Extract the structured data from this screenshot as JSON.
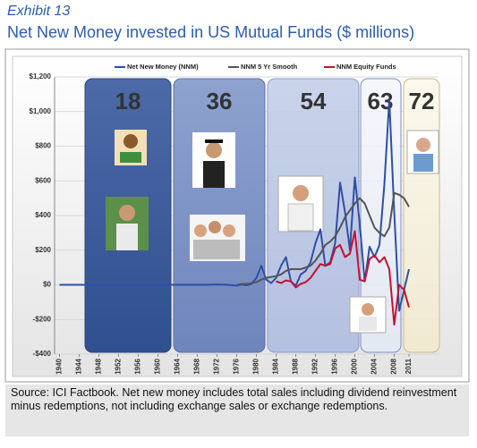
{
  "chart_data": {
    "type": "line",
    "exhibit": "Exhibit 13",
    "title": "Net New Money invested in US Mutual Funds ($ millions)",
    "x": [
      1940,
      1941,
      1942,
      1943,
      1944,
      1945,
      1946,
      1947,
      1948,
      1949,
      1950,
      1951,
      1952,
      1953,
      1954,
      1955,
      1956,
      1957,
      1958,
      1959,
      1960,
      1961,
      1962,
      1963,
      1964,
      1965,
      1966,
      1967,
      1968,
      1969,
      1970,
      1971,
      1972,
      1973,
      1974,
      1975,
      1976,
      1977,
      1978,
      1979,
      1980,
      1981,
      1982,
      1983,
      1984,
      1985,
      1986,
      1987,
      1988,
      1989,
      1990,
      1991,
      1992,
      1993,
      1994,
      1995,
      1996,
      1997,
      1998,
      1999,
      2000,
      2001,
      2002,
      2003,
      2004,
      2005,
      2006,
      2007,
      2008,
      2009,
      2010,
      2011
    ],
    "series": [
      {
        "name": "Net New Money (NNM)",
        "color": "#2e4fa8",
        "values": [
          0,
          0,
          0,
          0,
          0,
          0,
          0,
          0,
          0,
          0,
          0,
          0,
          0,
          0,
          0,
          0,
          0,
          0,
          0,
          0,
          0,
          0,
          0,
          0,
          0,
          0,
          0,
          0,
          0,
          0,
          0,
          1,
          2,
          1,
          0,
          -2,
          -5,
          2,
          -3,
          5,
          40,
          110,
          30,
          10,
          40,
          110,
          160,
          20,
          -5,
          60,
          80,
          130,
          240,
          320,
          110,
          130,
          240,
          590,
          420,
          200,
          620,
          350,
          20,
          220,
          160,
          230,
          580,
          1070,
          420,
          -150,
          -30,
          90
        ]
      },
      {
        "name": "NNM 5 Yr Smooth",
        "color": "#555555",
        "values": [
          null,
          null,
          null,
          null,
          null,
          null,
          null,
          null,
          null,
          null,
          null,
          null,
          null,
          null,
          null,
          null,
          null,
          null,
          null,
          null,
          null,
          null,
          null,
          null,
          null,
          null,
          null,
          null,
          null,
          null,
          null,
          null,
          null,
          null,
          null,
          null,
          0,
          5,
          5,
          10,
          15,
          30,
          40,
          45,
          50,
          60,
          80,
          90,
          90,
          90,
          100,
          110,
          140,
          180,
          230,
          250,
          280,
          330,
          390,
          430,
          470,
          500,
          470,
          400,
          330,
          300,
          280,
          330,
          530,
          520,
          500,
          450
        ]
      },
      {
        "name": "NNM Equity Funds",
        "color": "#c8102e",
        "values": [
          null,
          null,
          null,
          null,
          null,
          null,
          null,
          null,
          null,
          null,
          null,
          null,
          null,
          null,
          null,
          null,
          null,
          null,
          null,
          null,
          null,
          null,
          null,
          null,
          null,
          null,
          null,
          null,
          null,
          null,
          null,
          null,
          null,
          null,
          null,
          null,
          null,
          null,
          null,
          null,
          null,
          null,
          null,
          null,
          20,
          10,
          25,
          20,
          -15,
          5,
          15,
          40,
          80,
          120,
          110,
          120,
          210,
          230,
          160,
          180,
          310,
          30,
          20,
          150,
          170,
          130,
          160,
          90,
          -230,
          0,
          -30,
          -130
        ]
      }
    ],
    "xlim": [
      1939,
      2017
    ],
    "xticks": [
      1940,
      1944,
      1948,
      1952,
      1956,
      1960,
      1964,
      1968,
      1972,
      1976,
      1980,
      1984,
      1988,
      1992,
      1996,
      2000,
      2004,
      2008,
      2011
    ],
    "ylim": [
      -400,
      1200
    ],
    "yticks": [
      {
        "value": -400,
        "label": "-$400"
      },
      {
        "value": -200,
        "label": "-$200"
      },
      {
        "value": 0,
        "label": "$0"
      },
      {
        "value": 200,
        "label": "$200"
      },
      {
        "value": 400,
        "label": "$400"
      },
      {
        "value": 600,
        "label": "$600"
      },
      {
        "value": 800,
        "label": "$800"
      },
      {
        "value": 1000,
        "label": "$1,000"
      },
      {
        "value": 1200,
        "label": "$1,200"
      }
    ],
    "grid": true,
    "legend": "top",
    "annotations": [
      "18",
      "36",
      "54",
      "63",
      "72"
    ],
    "source": "Source: ICI Factbook.  Net new money includes total sales including dividend reinvestment minus redemptions, not including exchange sales or exchange redemptions."
  }
}
